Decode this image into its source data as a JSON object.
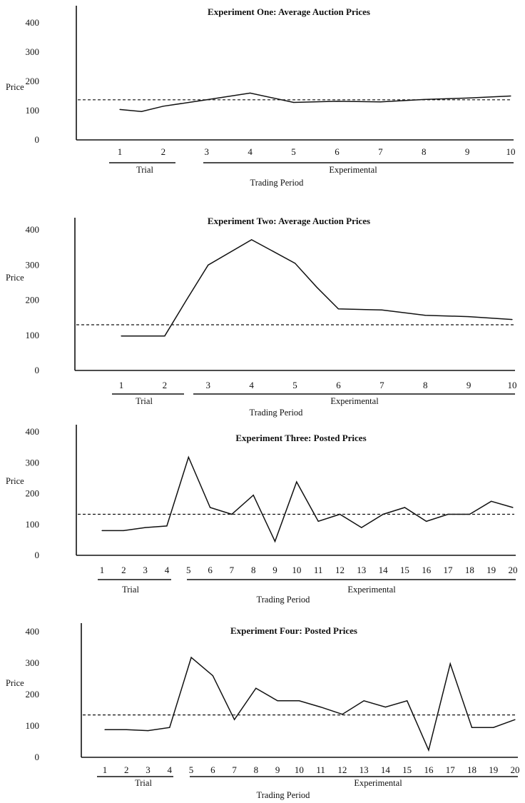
{
  "chart_data": [
    {
      "type": "line",
      "title": "Experiment One:  Average Auction Prices",
      "ylabel": "Price",
      "xlabel": "Trading Period",
      "ylim": [
        0,
        400
      ],
      "yticks": [
        0,
        100,
        200,
        300,
        400
      ],
      "categories": [
        "1",
        "2",
        "3",
        "4",
        "5",
        "6",
        "7",
        "8",
        "9",
        "10"
      ],
      "x": [
        1,
        1.5,
        2,
        3,
        4,
        5,
        6,
        7,
        8,
        9,
        10
      ],
      "values": [
        104,
        97,
        115,
        137,
        160,
        128,
        132,
        130,
        138,
        143,
        150
      ],
      "reference_line": 137,
      "groups": [
        {
          "label": "Trial",
          "range": [
            1,
            2
          ]
        },
        {
          "label": "Experimental",
          "range": [
            3,
            10
          ]
        }
      ]
    },
    {
      "type": "line",
      "title": "Experiment Two:  Average Auction Prices",
      "ylabel": "Price",
      "xlabel": "Trading Period",
      "ylim": [
        0,
        400
      ],
      "yticks": [
        0,
        100,
        200,
        300,
        400
      ],
      "categories": [
        "1",
        "2",
        "3",
        "4",
        "5",
        "6",
        "7",
        "8",
        "9",
        "10"
      ],
      "x": [
        1,
        2,
        2.5,
        3,
        4,
        5,
        5.5,
        6,
        7,
        8,
        9,
        10
      ],
      "values": [
        98,
        98,
        200,
        300,
        372,
        305,
        237,
        175,
        172,
        157,
        153,
        145
      ],
      "reference_line": 130,
      "groups": [
        {
          "label": "Trial",
          "range": [
            1,
            2
          ]
        },
        {
          "label": "Experimental",
          "range": [
            3,
            10
          ]
        }
      ]
    },
    {
      "type": "line",
      "title": "Experiment Three:  Posted Prices",
      "ylabel": "Price",
      "xlabel": "Trading Period",
      "ylim": [
        0,
        400
      ],
      "yticks": [
        0,
        100,
        200,
        300,
        400
      ],
      "categories": [
        "1",
        "2",
        "3",
        "4",
        "5",
        "6",
        "7",
        "8",
        "9",
        "10",
        "11",
        "12",
        "13",
        "14",
        "15",
        "16",
        "17",
        "18",
        "19",
        "20"
      ],
      "x": [
        1,
        2,
        3,
        4,
        5,
        6,
        7,
        8,
        9,
        10,
        11,
        12,
        13,
        14,
        15,
        16,
        17,
        18,
        19,
        20
      ],
      "values": [
        80,
        80,
        90,
        95,
        318,
        155,
        133,
        195,
        45,
        238,
        110,
        133,
        90,
        133,
        155,
        110,
        133,
        133,
        175,
        155
      ],
      "reference_line": 133,
      "groups": [
        {
          "label": "Trial",
          "range": [
            1,
            4
          ]
        },
        {
          "label": "Experimental",
          "range": [
            5,
            20
          ]
        }
      ]
    },
    {
      "type": "line",
      "title": "Experiment Four:  Posted Prices",
      "ylabel": "Price",
      "xlabel": "Trading Period",
      "ylim": [
        0,
        400
      ],
      "yticks": [
        0,
        100,
        200,
        300,
        400
      ],
      "categories": [
        "1",
        "2",
        "3",
        "4",
        "5",
        "6",
        "7",
        "8",
        "9",
        "10",
        "11",
        "12",
        "13",
        "14",
        "15",
        "16",
        "17",
        "18",
        "19",
        "20"
      ],
      "x": [
        1,
        2,
        3,
        4,
        5,
        6,
        7,
        8,
        9,
        10,
        11,
        12,
        13,
        14,
        15,
        16,
        17,
        18,
        19,
        20
      ],
      "values": [
        88,
        88,
        85,
        95,
        318,
        260,
        120,
        220,
        180,
        180,
        160,
        137,
        180,
        160,
        180,
        23,
        298,
        95,
        95,
        120
      ],
      "reference_line": 135,
      "groups": [
        {
          "label": "Trial",
          "range": [
            1,
            4
          ]
        },
        {
          "label": "Experimental",
          "range": [
            5,
            20
          ]
        }
      ]
    }
  ]
}
